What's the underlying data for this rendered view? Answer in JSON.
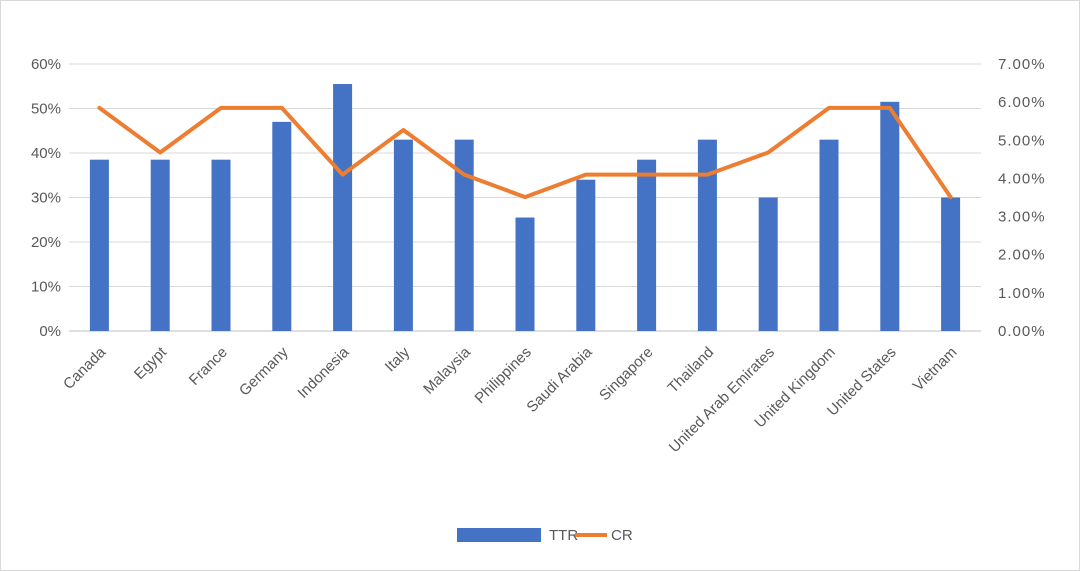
{
  "chart_data": {
    "type": "bar+line",
    "categories": [
      "Canada",
      "Egypt",
      "France",
      "Germany",
      "Indonesia",
      "Italy",
      "Malaysia",
      "Philippines",
      "Saudi Arabia",
      "Singapore",
      "Thailand",
      "United Arab Emirates",
      "United Kingdom",
      "United States",
      "Vietnam"
    ],
    "series": [
      {
        "name": "TTR",
        "type": "bar",
        "axis": "left",
        "color": "#4472c4",
        "values": [
          38.5,
          38.5,
          38.5,
          47,
          55.5,
          43,
          43,
          25.5,
          34,
          38.5,
          43,
          30,
          43,
          51.5,
          30
        ]
      },
      {
        "name": "CR",
        "type": "line",
        "axis": "right",
        "color": "#ed7d31",
        "values": [
          5.85,
          4.68,
          5.85,
          5.85,
          4.1,
          5.27,
          4.1,
          3.51,
          4.1,
          4.1,
          4.1,
          4.68,
          5.85,
          5.85,
          3.51
        ]
      }
    ],
    "y_left": {
      "min": 0,
      "max": 60,
      "ticks": [
        "0%",
        "10%",
        "20%",
        "30%",
        "40%",
        "50%",
        "60%"
      ]
    },
    "y_right": {
      "min": 0,
      "max": 7,
      "ticks": [
        "0.00%",
        "1.00%",
        "2.00%",
        "3.00%",
        "4.00%",
        "5.00%",
        "6.00%",
        "7.00%"
      ]
    },
    "grid": true,
    "legend_position": "bottom",
    "legend": [
      "TTR",
      "CR"
    ]
  }
}
